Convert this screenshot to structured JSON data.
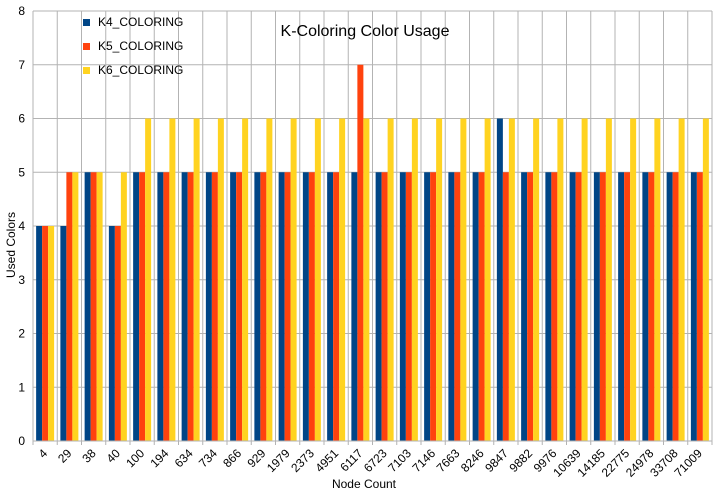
{
  "chart_data": {
    "type": "bar",
    "title": "K-Coloring Color Usage",
    "xlabel": "Node Count",
    "ylabel": "Used Colors",
    "ylim": [
      0,
      8
    ],
    "yticks": [
      "0",
      "1",
      "2",
      "3",
      "4",
      "5",
      "6",
      "7",
      "8"
    ],
    "grid": true,
    "legend_position": "top-left",
    "categories": [
      "4",
      "29",
      "38",
      "40",
      "100",
      "194",
      "634",
      "734",
      "866",
      "929",
      "1979",
      "2373",
      "4951",
      "6117",
      "6723",
      "7103",
      "7146",
      "7663",
      "8246",
      "9847",
      "9882",
      "9976",
      "10639",
      "14185",
      "22775",
      "24978",
      "33708",
      "71009"
    ],
    "series": [
      {
        "name": "K4_COLORING",
        "color": "#004586",
        "values": [
          4,
          4,
          5,
          4,
          5,
          5,
          5,
          5,
          5,
          5,
          5,
          5,
          5,
          5,
          5,
          5,
          5,
          5,
          5,
          6,
          5,
          5,
          5,
          5,
          5,
          5,
          5,
          5
        ]
      },
      {
        "name": "K5_COLORING",
        "color": "#ff420e",
        "values": [
          4,
          5,
          5,
          4,
          5,
          5,
          5,
          5,
          5,
          5,
          5,
          5,
          5,
          7,
          5,
          5,
          5,
          5,
          5,
          5,
          5,
          5,
          5,
          5,
          5,
          5,
          5,
          5
        ]
      },
      {
        "name": "K6_COLORING",
        "color": "#ffd320",
        "values": [
          4,
          5,
          5,
          5,
          6,
          6,
          6,
          6,
          6,
          6,
          6,
          6,
          6,
          6,
          6,
          6,
          6,
          6,
          6,
          6,
          6,
          6,
          6,
          6,
          6,
          6,
          6,
          6
        ]
      }
    ]
  }
}
